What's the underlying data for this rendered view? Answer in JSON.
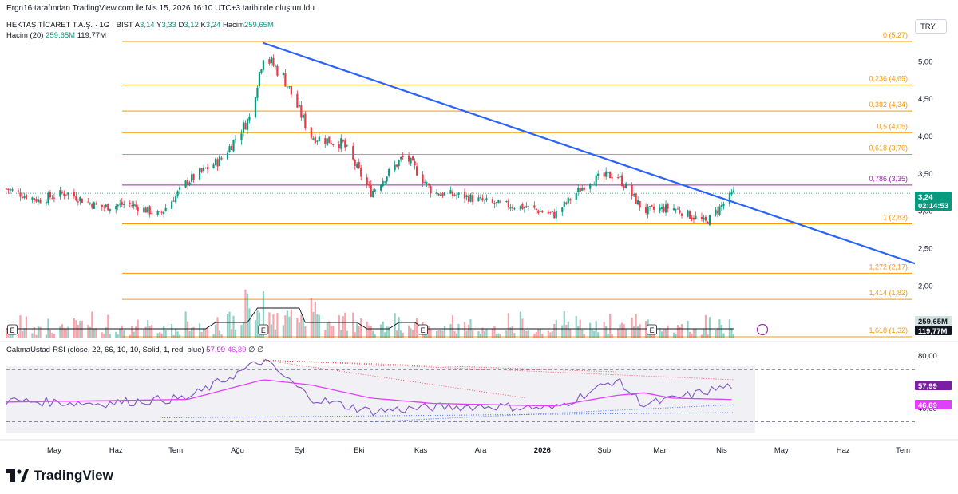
{
  "header": {
    "attribution": "Ergn16 tarafından TradingView.com ile Nis 15, 2026 16:10 UTC+3 tarihinde oluşturuldu",
    "symbol": "HEKTAŞ TİCARET T.A.Ş. · 1G · BIST",
    "ohlc": {
      "a_label": "A",
      "a": "3,14",
      "y_label": "Y",
      "y": "3,33",
      "d_label": "D",
      "d": "3,12",
      "k_label": "K",
      "k": "3,24",
      "hacim_label": "Hacim",
      "hacim": "259,65M"
    },
    "volume_legend": {
      "label": "Hacim (20)",
      "v1": "259,65M",
      "v2": "119,77M"
    },
    "rsi_legend": {
      "label": "CakmaUstad-RSI (close, 22, 66, 10, 10, Solid, 1, red, blue)",
      "v1": "57,99",
      "v2": "46,89",
      "v3": "∅",
      "v4": "∅"
    },
    "currency": "TRY"
  },
  "brand": "TradingView",
  "colors": {
    "up": "#089981",
    "down": "#f23645",
    "trend": "#2962ff",
    "fib": "#ff9800",
    "fib_786": "#9c27b0",
    "rsi": "#7e57c2",
    "rsi_ma": "#e040fb",
    "vol_ma": "#131722"
  },
  "chart_data": [
    {
      "type": "line",
      "title": "HEKTAŞ TİCARET T.A.Ş. · 1G · BIST",
      "x_ticks": [
        "May",
        "Haz",
        "Tem",
        "Ağu",
        "Eyl",
        "Eki",
        "Kas",
        "Ara",
        "2026",
        "Şub",
        "Mar",
        "Nis",
        "May",
        "Haz",
        "Tem"
      ],
      "y_ticks": [
        "5,00",
        "4,50",
        "4,00",
        "3,50",
        "3,00",
        "2,50",
        "2,00"
      ],
      "ylim": [
        1.2,
        5.45
      ],
      "close_series": {
        "name": "close",
        "x": [
          "2025-04-15",
          "2025-05-01",
          "2025-05-15",
          "2025-06-01",
          "2025-06-15",
          "2025-07-01",
          "2025-07-15",
          "2025-08-01",
          "2025-08-15",
          "2025-08-22",
          "2025-09-01",
          "2025-09-15",
          "2025-10-01",
          "2025-10-15",
          "2025-11-01",
          "2025-11-15",
          "2025-12-01",
          "2025-12-15",
          "2026-01-01",
          "2026-01-15",
          "2026-02-01",
          "2026-02-15",
          "2026-03-01",
          "2026-03-15",
          "2026-04-01",
          "2026-04-15"
        ],
        "values": [
          3.3,
          3.15,
          3.25,
          3.05,
          3.1,
          2.95,
          3.4,
          3.7,
          4.25,
          5.1,
          4.8,
          4.0,
          3.9,
          3.25,
          3.75,
          3.25,
          3.2,
          3.1,
          3.05,
          2.95,
          3.4,
          3.5,
          3.0,
          3.05,
          2.85,
          3.24
        ]
      },
      "last_price": {
        "value": "3,24",
        "countdown": "02:14:53"
      },
      "fibonacci": [
        {
          "label": "0 (5,27)",
          "value": 5.27
        },
        {
          "label": "0,236 (4,69)",
          "value": 4.69
        },
        {
          "label": "0,382 (4,34)",
          "value": 4.34
        },
        {
          "label": "0,5 (4,05)",
          "value": 4.05
        },
        {
          "label": "0,618 (3,76)",
          "value": 3.76
        },
        {
          "label": "0,786 (3,35)",
          "value": 3.35
        },
        {
          "label": "1 (2,83)",
          "value": 2.83
        },
        {
          "label": "1,272 (2,17)",
          "value": 2.17
        },
        {
          "label": "1,414 (1,82)",
          "value": 1.82
        },
        {
          "label": "1,618 (1,32)",
          "value": 1.32
        }
      ],
      "trendline": {
        "from": {
          "x": "2025-08-22",
          "y": 5.25
        },
        "to": {
          "x": "2026-07-15",
          "y": 2.3
        }
      },
      "earnings_markers": [
        "E",
        "E",
        "E",
        "E"
      ]
    },
    {
      "type": "bar",
      "title": "Hacim (20)",
      "badges": [
        "259,65M",
        "119,77M"
      ]
    },
    {
      "type": "line",
      "title": "CakmaUstad-RSI",
      "y_ticks": [
        "80,00",
        "40,00"
      ],
      "ylim": [
        20,
        85
      ],
      "bands": [
        70,
        30
      ],
      "series": [
        {
          "name": "RSI",
          "x": [
            "2025-04-15",
            "2025-06-01",
            "2025-07-15",
            "2025-08-22",
            "2025-09-15",
            "2025-10-15",
            "2025-11-15",
            "2025-12-15",
            "2026-01-15",
            "2026-02-15",
            "2026-03-01",
            "2026-03-15",
            "2026-04-15"
          ],
          "values": [
            46,
            44,
            48,
            77,
            48,
            38,
            41,
            42,
            40,
            62,
            43,
            47,
            57.99
          ]
        },
        {
          "name": "MA",
          "x": [
            "2025-04-15",
            "2025-06-01",
            "2025-07-15",
            "2025-08-22",
            "2025-09-15",
            "2025-10-15",
            "2025-11-15",
            "2025-12-15",
            "2026-01-15",
            "2026-02-15",
            "2026-03-01",
            "2026-03-15",
            "2026-04-15"
          ],
          "values": [
            45,
            46,
            47,
            62,
            58,
            48,
            44,
            43,
            42,
            50,
            52,
            48,
            46.89
          ]
        }
      ],
      "badges": [
        "57,99",
        "46,89"
      ]
    }
  ]
}
